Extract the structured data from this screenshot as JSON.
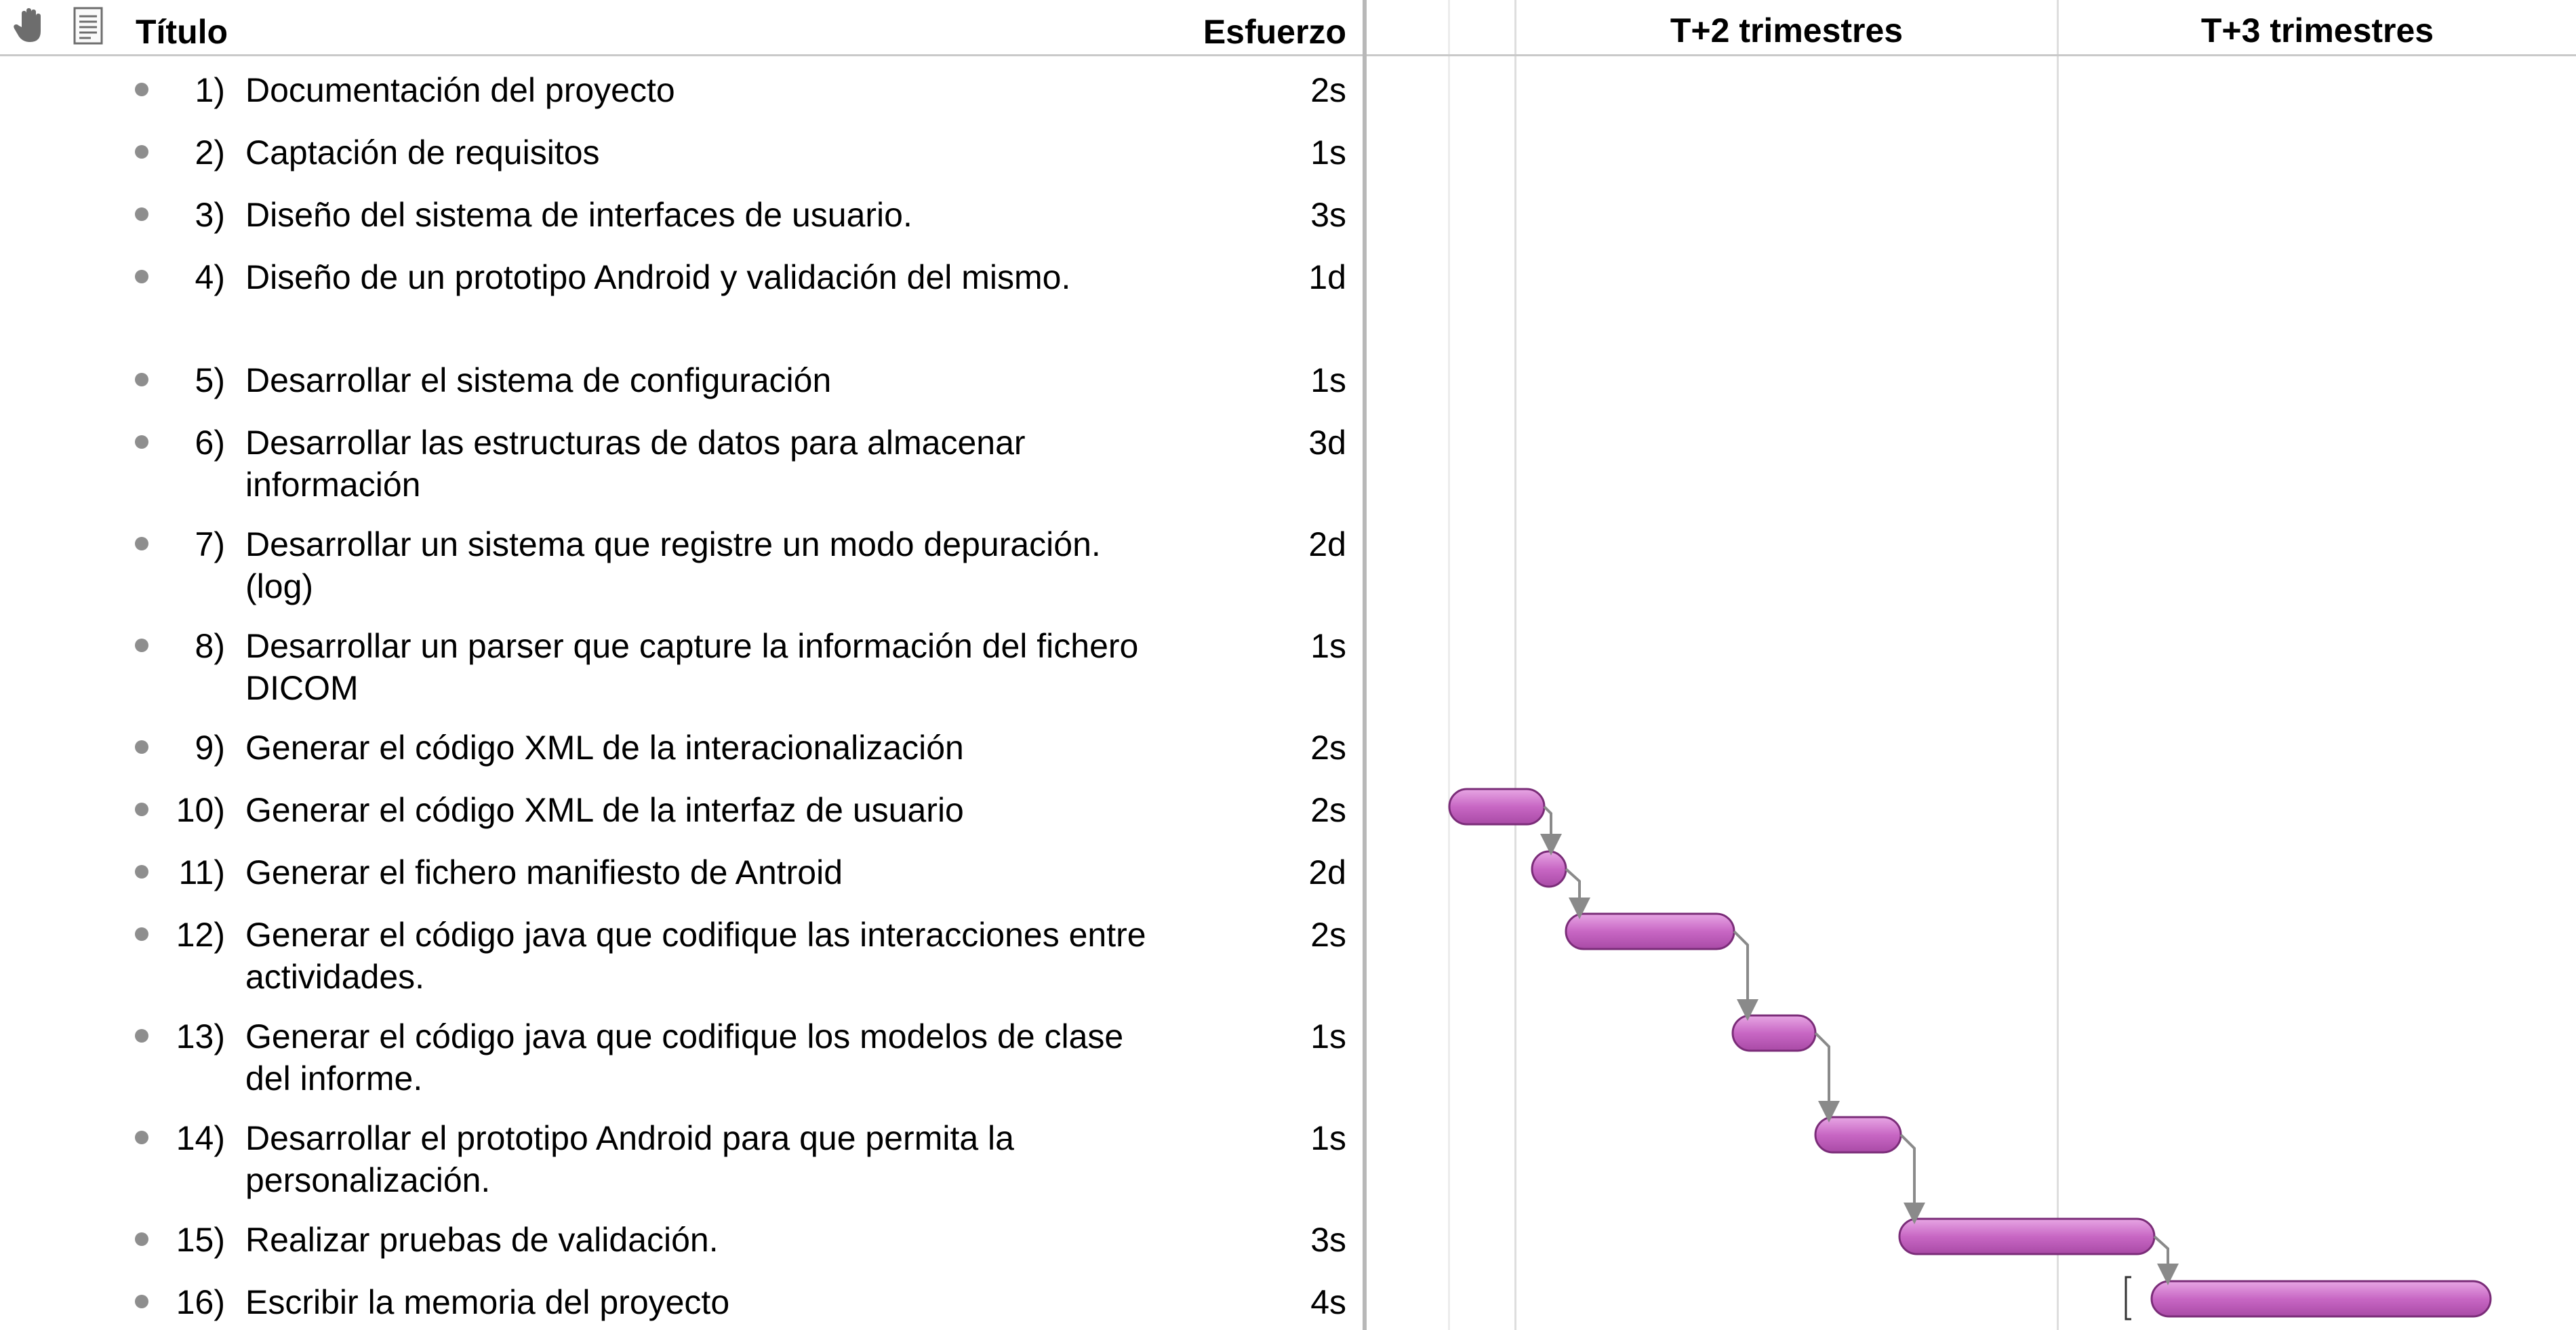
{
  "header": {
    "title_label": "Título",
    "effort_label": "Esfuerzo",
    "quarters": [
      "T+2 trimestres",
      "T+3 trimestres"
    ],
    "icons": [
      "hand-icon",
      "notes-icon"
    ]
  },
  "colors": {
    "bar_fill": "#c867c4",
    "bar_stroke": "#7a2c78",
    "connector": "#8a8a8a",
    "gridline": "#dedede",
    "bullet": "#8e8e8e"
  },
  "tasks": [
    {
      "num": "1)",
      "title": "Documentación del proyecto",
      "effort": "2s"
    },
    {
      "num": "2)",
      "title": "Captación de requisitos",
      "effort": "1s"
    },
    {
      "num": "3)",
      "title": "Diseño del sistema de interfaces de usuario.",
      "effort": "3s"
    },
    {
      "num": "4)",
      "title": "Diseño de un prototipo Android y validación del mismo.",
      "effort": "1d"
    },
    {
      "num": "5)",
      "title": "Desarrollar el sistema de configuración",
      "effort": "1s"
    },
    {
      "num": "6)",
      "title": "Desarrollar las estructuras de datos para almacenar información",
      "effort": "3d"
    },
    {
      "num": "7)",
      "title": "Desarrollar un sistema que registre un modo depuración. (log)",
      "effort": "2d"
    },
    {
      "num": "8)",
      "title": "Desarrollar un parser que capture la información del fichero DICOM",
      "effort": "1s"
    },
    {
      "num": "9)",
      "title": "Generar el código XML de la interacionalización",
      "effort": "2s"
    },
    {
      "num": "10)",
      "title": "Generar el código XML de la interfaz de usuario",
      "effort": "2s"
    },
    {
      "num": "11)",
      "title": "Generar el fichero manifiesto de Antroid",
      "effort": "2d"
    },
    {
      "num": "12)",
      "title": "Generar el código java que codifique las interacciones entre actividades.",
      "effort": "2s"
    },
    {
      "num": "13)",
      "title": "Generar el código java que codifique los modelos de clase del informe.",
      "effort": "1s"
    },
    {
      "num": "14)",
      "title": "Desarrollar el prototipo Android para que permita la personalización.",
      "effort": "1s"
    },
    {
      "num": "15)",
      "title": "Realizar pruebas de validación.",
      "effort": "3s"
    },
    {
      "num": "16)",
      "title": "Escribir la memoria del proyecto",
      "effort": "4s"
    }
  ]
}
